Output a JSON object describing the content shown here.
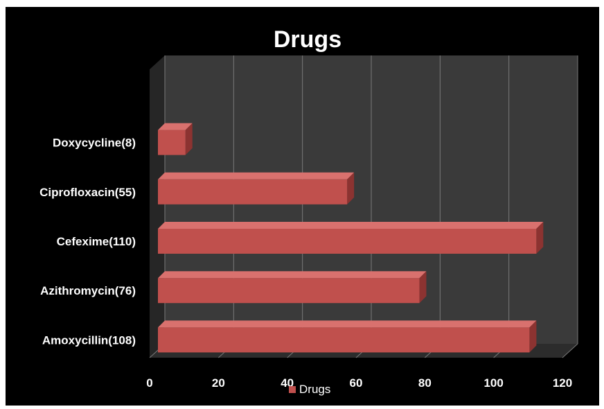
{
  "chart_data": {
    "type": "bar",
    "orientation": "horizontal",
    "style": "3d",
    "title": "Drugs",
    "categories": [
      "Amoxycillin(108)",
      "Azithromycin(76)",
      "Cefexime(110)",
      "Ciprofloxacin(55)",
      "Doxycycline(8)"
    ],
    "series": [
      {
        "name": "Drugs",
        "values": [
          108,
          76,
          110,
          55,
          8
        ]
      }
    ],
    "xlim": [
      0,
      120
    ],
    "x_ticks": [
      0,
      20,
      40,
      60,
      80,
      100,
      120
    ],
    "grid": true,
    "legend_position": "bottom",
    "colors": {
      "background": "#000000",
      "plot_wall": "#3a3a3a",
      "plot_floor": "#2c2c2c",
      "gridline": "#7a7a7a",
      "bar_front": "#c0504d",
      "bar_top": "#d9716e",
      "bar_side": "#8c3331",
      "text": "#ffffff"
    }
  }
}
